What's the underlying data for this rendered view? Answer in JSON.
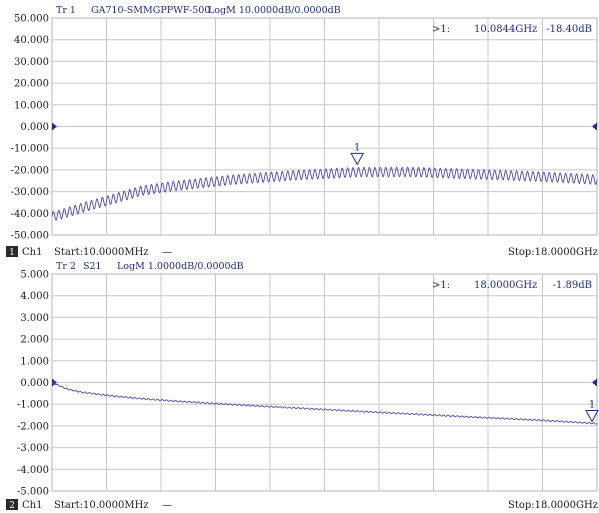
{
  "chart_data": [
    {
      "type": "line",
      "trace_label": "Tr 1",
      "title": "GA710-SMMGPPWF-500",
      "format": "LogM 10.0000dB/0.0000dB",
      "ytick_labels": [
        "50.000",
        "40.000",
        "30.000",
        "20.000",
        "10.000",
        "0.000",
        "-10.000",
        "-20.000",
        "-30.000",
        "-40.000",
        "-50.000"
      ],
      "ylim": [
        -50,
        50
      ],
      "xlim": [
        0.01,
        18
      ],
      "x_unit": "GHz",
      "grid": true,
      "series": [
        {
          "color": "#4a4ab0",
          "ripple_db": 2.2,
          "ripple_cycles": 100,
          "envelope": {
            "x": [
              0.01,
              0.3,
              1.0,
              2.0,
              3.0,
              4.0,
              6.0,
              8.0,
              10.0844,
              12.0,
              14.0,
              16.0,
              18.0
            ],
            "y": [
              -41.5,
              -40.5,
              -37.5,
              -33.5,
              -29.5,
              -27.5,
              -24.5,
              -22.5,
              -21.0,
              -21.0,
              -22.0,
              -23.0,
              -24.5
            ]
          }
        }
      ],
      "marker": {
        "label": "1",
        "x": 10.0844,
        "y": -18.4,
        "readout_index": ">1:",
        "readout_freq": "10.0844GHz",
        "readout_value": "-18.40dB"
      },
      "ref_level": 0.0,
      "channel": "1",
      "channel_label": "Ch1",
      "start": "Start:10.0000MHz",
      "start_dash": "—",
      "stop": "Stop:18.0000GHz"
    },
    {
      "type": "line",
      "trace_label": "Tr 2",
      "title": "S21",
      "format": "LogM 1.0000dB/0.0000dB",
      "ytick_labels": [
        "5.000",
        "4.000",
        "3.000",
        "2.000",
        "1.000",
        "0.000",
        "-1.000",
        "-2.000",
        "-3.000",
        "-4.000",
        "-5.000"
      ],
      "ylim": [
        -5,
        5
      ],
      "xlim": [
        0.01,
        18
      ],
      "x_unit": "GHz",
      "grid": true,
      "series": [
        {
          "color": "#4a4ab0",
          "ripple_db": 0.03,
          "ripple_cycles": 120,
          "envelope": {
            "x": [
              0.01,
              0.5,
              1.0,
              2.0,
              3.0,
              4.0,
              6.0,
              8.0,
              10.0,
              12.0,
              14.0,
              16.0,
              18.0
            ],
            "y": [
              0.0,
              -0.3,
              -0.45,
              -0.62,
              -0.75,
              -0.85,
              -1.02,
              -1.17,
              -1.32,
              -1.46,
              -1.6,
              -1.73,
              -1.89
            ]
          }
        }
      ],
      "marker": {
        "label": "1",
        "x": 18.0,
        "y": -1.89,
        "readout_index": ">1:",
        "readout_freq": "18.0000GHz",
        "readout_value": "-1.89dB"
      },
      "ref_level": 0.0,
      "channel": "2",
      "channel_label": "Ch1",
      "start": "Start:10.0000MHz",
      "start_dash": "—",
      "stop": "Stop:18.0000GHz"
    }
  ]
}
